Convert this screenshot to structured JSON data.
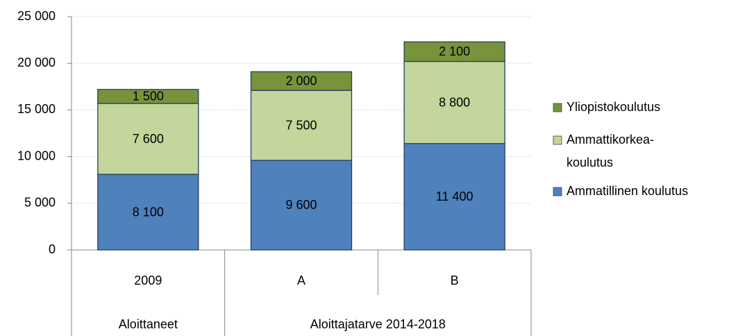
{
  "chart_data": {
    "type": "stacked_bar",
    "categories": [
      "2009",
      "A",
      "B"
    ],
    "groups": [
      {
        "label": "Aloittaneet",
        "span": 1
      },
      {
        "label": "Aloittajatarve 2014-2018",
        "span": 2
      }
    ],
    "series": [
      {
        "name": "Ammatillinen koulutus",
        "color": "#4f81bd",
        "values": [
          8100,
          9600,
          11400
        ],
        "value_labels": [
          "8 100",
          "9 600",
          "11 400"
        ]
      },
      {
        "name": "Ammattikorkea-koulutus",
        "color": "#c3d69b",
        "values": [
          7600,
          7500,
          8800
        ],
        "value_labels": [
          "7 600",
          "7 500",
          "8 800"
        ]
      },
      {
        "name": "Yliopistokoulutus",
        "color": "#77933c",
        "values": [
          1500,
          2000,
          2100
        ],
        "value_labels": [
          "1 500",
          "2 000",
          "2 100"
        ]
      }
    ],
    "ylim": [
      0,
      25000
    ],
    "yticks": [
      0,
      {
        "value": 5000,
        "label": "5 000"
      },
      {
        "value": 10000,
        "label": "10 000"
      },
      {
        "value": 15000,
        "label": "15 000"
      },
      {
        "value": 20000,
        "label": "20 000"
      },
      {
        "value": 25000,
        "label": "25 000"
      }
    ],
    "grid": true,
    "legend": "right"
  }
}
